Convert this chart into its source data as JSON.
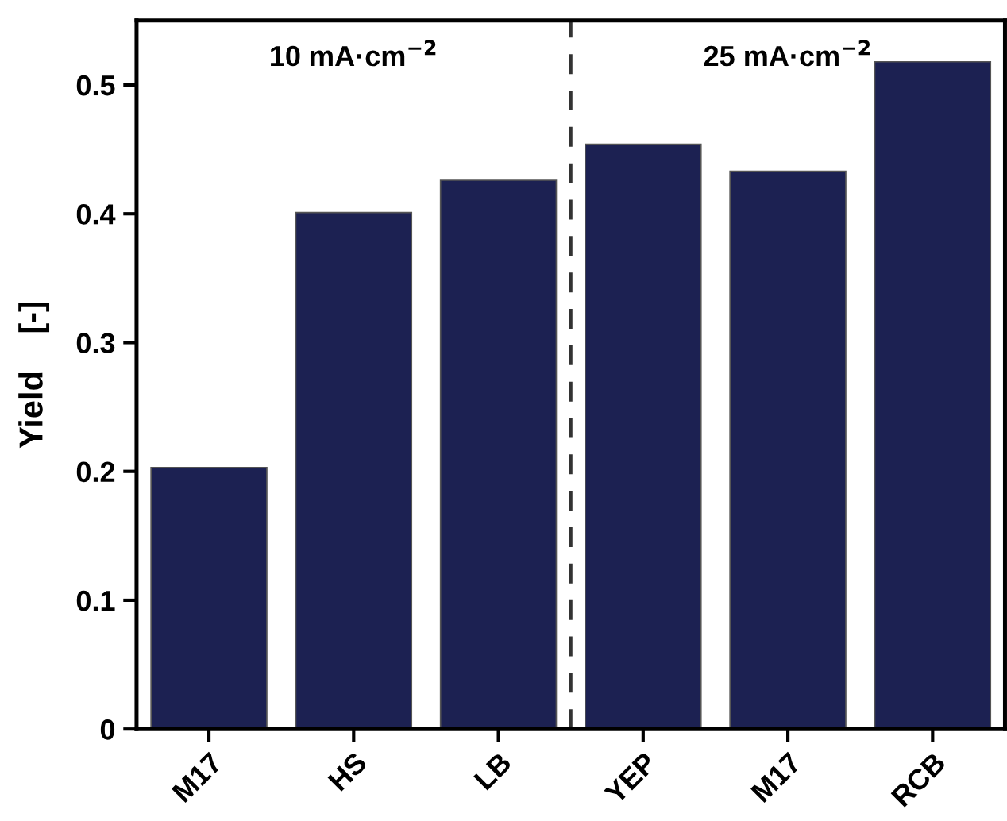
{
  "chart_data": {
    "type": "bar",
    "categories": [
      "M17",
      "HS",
      "LB",
      "YEP",
      "M17",
      "RCB"
    ],
    "values": [
      0.203,
      0.401,
      0.426,
      0.454,
      0.433,
      0.518
    ],
    "color": "#1c2152",
    "ylabel": "Yield    [-]",
    "ylim": [
      0,
      0.55
    ],
    "yticks": [
      0,
      0.1,
      0.2,
      0.3,
      0.4,
      0.5
    ],
    "grid": false,
    "legend": false,
    "annotations": [
      "10 mA·cm$^{−2}$",
      "25 mA·cm$^{−2}$"
    ]
  }
}
